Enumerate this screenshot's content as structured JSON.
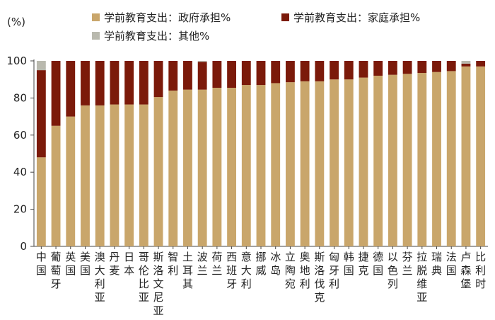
{
  "chart_data": {
    "type": "bar",
    "stacked": true,
    "y_unit_label": "(%)",
    "ylim": [
      0,
      100
    ],
    "yticks": [
      0,
      20,
      40,
      60,
      80,
      100
    ],
    "grid": false,
    "legend_position": "top",
    "categories": [
      "中国",
      "葡萄牙",
      "英国",
      "美国",
      "澳大利亚",
      "丹麦",
      "日本",
      "哥伦比亚",
      "斯洛文尼亚",
      "智利",
      "土耳其",
      "波兰",
      "荷兰",
      "西班牙",
      "意大利",
      "挪威",
      "冰岛",
      "立陶宛",
      "奥地利",
      "斯洛伐克",
      "匈牙利",
      "韩国",
      "捷克",
      "德国",
      "以色列",
      "芬兰",
      "拉脱维亚",
      "瑞典",
      "法国",
      "卢森堡",
      "比利时"
    ],
    "series": [
      {
        "name": "学前教育支出：政府承担%",
        "color": "#c9a66b",
        "values": [
          48,
          65,
          70,
          76,
          76,
          76.5,
          76.5,
          76.5,
          80.5,
          84,
          84.5,
          84.5,
          85.5,
          85.5,
          87,
          87,
          88,
          88.5,
          89,
          89,
          90,
          90,
          91,
          92,
          92.5,
          93,
          93.5,
          94,
          94.5,
          97,
          97
        ]
      },
      {
        "name": "学前教育支出：家庭承担%",
        "color": "#7b1a0a",
        "values": [
          47,
          35,
          30,
          24,
          24,
          23.5,
          23.5,
          23.5,
          19.5,
          16,
          15.5,
          15,
          14.5,
          14.5,
          13,
          13,
          12,
          11.5,
          11,
          11,
          10,
          10,
          9,
          8,
          7.5,
          7,
          6.5,
          6,
          5.5,
          1.5,
          3
        ]
      },
      {
        "name": "学前教育支出：其他%",
        "color": "#b9b9ae",
        "values": [
          5,
          0,
          0,
          0,
          0,
          0,
          0,
          0,
          0,
          0,
          0,
          0.5,
          0,
          0,
          0,
          0,
          0,
          0,
          0,
          0,
          0,
          0,
          0,
          0,
          0,
          0,
          0,
          0,
          0,
          1.5,
          0
        ]
      }
    ]
  }
}
